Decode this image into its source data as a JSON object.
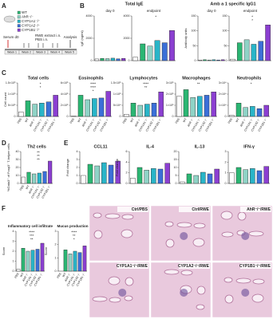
{
  "figure": {
    "panels": [
      "A",
      "B",
      "C",
      "D",
      "E",
      "F"
    ],
    "group_titles": [
      "Total IgE",
      "Amb a 1 specific IgG1"
    ]
  },
  "diagram": {
    "legend": [
      "WT",
      "AhR⁻/⁻",
      "CYP1A1⁻/⁻",
      "CYP1A2⁻/⁻",
      "CYP1B1⁻/⁻"
    ],
    "serum": "Serum d0",
    "treatment": [
      "RWE extract i.n.",
      "PBS i.n."
    ],
    "analysis": "Analysis",
    "weeks": [
      "Week 1",
      "Week 2",
      "Week 3",
      "Week 4",
      "Week 5"
    ]
  },
  "histology": [
    "Ctrl/PBS",
    "Ctrl/RWE",
    "AhR⁻/⁻/RWE",
    "CYP1A1⁻/⁻/RWE",
    "CYP1A2⁻/⁻/RWE",
    "CYP1B1⁻/⁻/RWE"
  ],
  "chart_data": [
    {
      "type": "bar",
      "title": "day 0",
      "ylabel": "IgE (ng/ml)",
      "values": [
        150,
        200,
        180,
        220,
        160,
        200
      ],
      "colors": [
        "#ffffff",
        "#2bb673",
        "#8fd3c6",
        "#29b5c8",
        "#3b6fd8",
        "#8b3fd1"
      ],
      "ylim": [
        0,
        4000
      ],
      "yticks": [
        0,
        2000,
        4000
      ]
    },
    {
      "type": "bar",
      "title": "endpoint",
      "values": [
        300,
        1500,
        1300,
        1800,
        1600,
        2700
      ],
      "colors": [
        "#ffffff",
        "#2bb673",
        "#8fd3c6",
        "#29b5c8",
        "#3b6fd8",
        "#8b3fd1"
      ],
      "ylim": [
        0,
        4000
      ],
      "yticks": [
        0,
        2000,
        4000
      ],
      "annotations": [
        "*"
      ]
    },
    {
      "type": "bar",
      "title": "day 0",
      "ylabel": "Antibody units",
      "values": [
        2,
        3,
        2,
        3,
        2,
        3
      ],
      "colors": [
        "#ffffff",
        "#2bb673",
        "#8fd3c6",
        "#29b5c8",
        "#3b6fd8",
        "#8b3fd1"
      ],
      "ylim": [
        0,
        150
      ],
      "yticks": [
        0,
        50,
        100,
        150
      ]
    },
    {
      "type": "bar",
      "title": "endpoint",
      "values": [
        5,
        60,
        70,
        55,
        65,
        120
      ],
      "colors": [
        "#ffffff",
        "#2bb673",
        "#8fd3c6",
        "#29b5c8",
        "#3b6fd8",
        "#8b3fd1"
      ],
      "ylim": [
        0,
        150
      ],
      "yticks": [
        0,
        50,
        100,
        150
      ],
      "annotations": [
        "*",
        "*"
      ]
    },
    {
      "type": "bar",
      "title": "Total cells",
      "ylabel": "Cell count",
      "categories": [
        "PBS",
        "WT",
        "AhR⁻/⁻",
        "CYP1A1⁻/⁻",
        "CYP1A2⁻/⁻",
        "CYP1B1⁻/⁻"
      ],
      "values": [
        200000,
        700000,
        550000,
        600000,
        650000,
        950000
      ],
      "colors": [
        "#ffffff",
        "#2bb673",
        "#8fd3c6",
        "#29b5c8",
        "#3b6fd8",
        "#8b3fd1"
      ],
      "ylim": [
        0,
        1500000
      ],
      "yticks": [
        0,
        {
          "value": 500000,
          "label": "5×10⁵"
        },
        {
          "value": 1000000,
          "label": "1×10⁶"
        },
        {
          "value": 1500000,
          "label": "1.5×10⁶"
        }
      ],
      "annotations": [
        "*",
        "*"
      ]
    },
    {
      "type": "bar",
      "title": "Eosinophils",
      "categories": [
        "PBS",
        "WT",
        "AhR⁻/⁻",
        "CYP1A1⁻/⁻",
        "CYP1A2⁻/⁻",
        "CYP1B1⁻/⁻"
      ],
      "values": [
        5000,
        380000,
        300000,
        320000,
        330000,
        450000
      ],
      "colors": [
        "#ffffff",
        "#2bb673",
        "#8fd3c6",
        "#29b5c8",
        "#3b6fd8",
        "#8b3fd1"
      ],
      "ylim": [
        0,
        600000
      ],
      "yticks": [
        0,
        {
          "value": 200000,
          "label": "2×10⁵"
        },
        {
          "value": 400000,
          "label": "4×10⁵"
        },
        {
          "value": 600000,
          "label": "6×10⁵"
        }
      ],
      "annotations": [
        "****",
        "****",
        "*"
      ]
    },
    {
      "type": "bar",
      "title": "Lymphocytes",
      "categories": [
        "PBS",
        "WT",
        "AhR⁻/⁻",
        "CYP1A1⁻/⁻",
        "CYP1A2⁻/⁻",
        "CYP1B1⁻/⁻"
      ],
      "values": [
        10000,
        60000,
        50000,
        55000,
        60000,
        110000
      ],
      "colors": [
        "#ffffff",
        "#2bb673",
        "#8fd3c6",
        "#29b5c8",
        "#3b6fd8",
        "#8b3fd1"
      ],
      "ylim": [
        0,
        150000
      ],
      "yticks": [
        0,
        {
          "value": 50000,
          "label": "5×10⁴"
        },
        {
          "value": 100000,
          "label": "1×10⁵"
        },
        {
          "value": 150000,
          "label": "1.5×10⁵"
        }
      ],
      "annotations": [
        "****",
        "**"
      ]
    },
    {
      "type": "bar",
      "title": "Macrophages",
      "categories": [
        "PBS",
        "WT",
        "AhR⁻/⁻",
        "CYP1A1⁻/⁻",
        "CYP1A2⁻/⁻",
        "CYP1B1⁻/⁻"
      ],
      "values": [
        180000,
        240000,
        170000,
        180000,
        190000,
        220000
      ],
      "colors": [
        "#ffffff",
        "#2bb673",
        "#8fd3c6",
        "#29b5c8",
        "#3b6fd8",
        "#8b3fd1"
      ],
      "ylim": [
        0,
        300000
      ],
      "yticks": [
        0,
        {
          "value": 100000,
          "label": "1×10⁵"
        },
        {
          "value": 200000,
          "label": "2×10⁵"
        },
        {
          "value": 300000,
          "label": "3×10⁵"
        }
      ],
      "annotations": [
        "**"
      ]
    },
    {
      "type": "bar",
      "title": "Neutrophils",
      "categories": [
        "PBS",
        "WT",
        "AhR⁻/⁻",
        "CYP1A1⁻/⁻",
        "CYP1A2⁻/⁻",
        "CYP1B1⁻/⁻"
      ],
      "values": [
        1000,
        12000,
        8000,
        9000,
        7000,
        10000
      ],
      "colors": [
        "#ffffff",
        "#2bb673",
        "#8fd3c6",
        "#29b5c8",
        "#3b6fd8",
        "#8b3fd1"
      ],
      "ylim": [
        0,
        30000
      ],
      "yticks": [
        0,
        {
          "value": 10000,
          "label": "1×10⁴"
        },
        {
          "value": 20000,
          "label": "2×10⁴"
        },
        {
          "value": 30000,
          "label": "3×10⁴"
        }
      ],
      "annotations": [
        "*"
      ]
    },
    {
      "type": "bar",
      "title": "Th2 cells",
      "ylabel": "%Gata3⁺ of Foxp3⁻ T-helper cells",
      "categories": [
        "PBS",
        "WT",
        "AhR⁻/⁻",
        "CYP1A1⁻/⁻",
        "CYP1A2⁻/⁻",
        "CYP1B1⁻/⁻"
      ],
      "values": [
        8,
        14,
        12,
        13,
        15,
        28
      ],
      "colors": [
        "#ffffff",
        "#2bb673",
        "#8fd3c6",
        "#29b5c8",
        "#3b6fd8",
        "#8b3fd1"
      ],
      "ylim": [
        0,
        40
      ],
      "yticks": [
        0,
        10,
        20,
        30,
        40
      ],
      "annotations": [
        "**",
        "**",
        "**"
      ]
    },
    {
      "type": "bar",
      "title": "CCL11",
      "ylabel": "Fold change",
      "values": [
        1,
        2.4,
        2.2,
        2.6,
        2.3,
        2.8
      ],
      "colors": [
        "#ffffff",
        "#2bb673",
        "#8fd3c6",
        "#29b5c8",
        "#3b6fd8",
        "#8b3fd1"
      ],
      "ylim": [
        0,
        4
      ],
      "yticks": [
        0,
        1,
        2,
        3,
        4
      ]
    },
    {
      "type": "bar",
      "title": "IL-4",
      "ylabel": "Fold change",
      "values": [
        1,
        3,
        2.5,
        2.8,
        2.7,
        3.8
      ],
      "colors": [
        "#ffffff",
        "#2bb673",
        "#8fd3c6",
        "#29b5c8",
        "#3b6fd8",
        "#8b3fd1"
      ],
      "ylim": [
        0,
        6
      ],
      "yticks": [
        0,
        2,
        4,
        6
      ]
    },
    {
      "type": "bar",
      "title": "IL-13",
      "values": [
        1,
        6,
        5,
        7,
        6,
        9
      ],
      "colors": [
        "#ffffff",
        "#2bb673",
        "#8fd3c6",
        "#29b5c8",
        "#3b6fd8",
        "#8b3fd1"
      ],
      "ylim": [
        0,
        20
      ],
      "yticks": [
        0,
        5,
        10,
        15,
        20
      ]
    },
    {
      "type": "bar",
      "title": "IFN-γ",
      "values": [
        1,
        1.5,
        1.3,
        1.4,
        1.2,
        1.6
      ],
      "colors": [
        "#ffffff",
        "#2bb673",
        "#8fd3c6",
        "#29b5c8",
        "#3b6fd8",
        "#8b3fd1"
      ],
      "ylim": [
        0,
        3
      ],
      "yticks": [
        0,
        1,
        2,
        3
      ]
    },
    {
      "type": "bar",
      "title": "Inflammatory cell infiltrate",
      "ylabel": "Score",
      "categories": [
        "PBS",
        "WT",
        "AhR⁻/⁻",
        "CYP1A1⁻/⁻",
        "CYP1A2⁻/⁻",
        "CYP1B1⁻/⁻"
      ],
      "values": [
        0.2,
        2.3,
        2.0,
        2.1,
        2.2,
        2.8
      ],
      "colors": [
        "#ffffff",
        "#2bb673",
        "#8fd3c6",
        "#29b5c8",
        "#3b6fd8",
        "#8b3fd1"
      ],
      "ylim": [
        0,
        4
      ],
      "yticks": [
        0,
        1,
        2,
        3,
        4
      ],
      "annotations": [
        "****",
        "***",
        "**"
      ]
    },
    {
      "type": "bar",
      "title": "Mucus production",
      "ylabel": "Score",
      "categories": [
        "PBS",
        "WT",
        "AhR⁻/⁻",
        "CYP1A1⁻/⁻",
        "CYP1A2⁻/⁻",
        "CYP1B1⁻/⁻"
      ],
      "values": [
        0,
        1.6,
        1.3,
        1.5,
        1.4,
        1.9
      ],
      "colors": [
        "#ffffff",
        "#2bb673",
        "#8fd3c6",
        "#29b5c8",
        "#3b6fd8",
        "#8b3fd1"
      ],
      "ylim": [
        0,
        3
      ],
      "yticks": [
        0,
        1,
        2,
        3
      ],
      "annotations": [
        "****",
        "**",
        "*"
      ]
    }
  ]
}
